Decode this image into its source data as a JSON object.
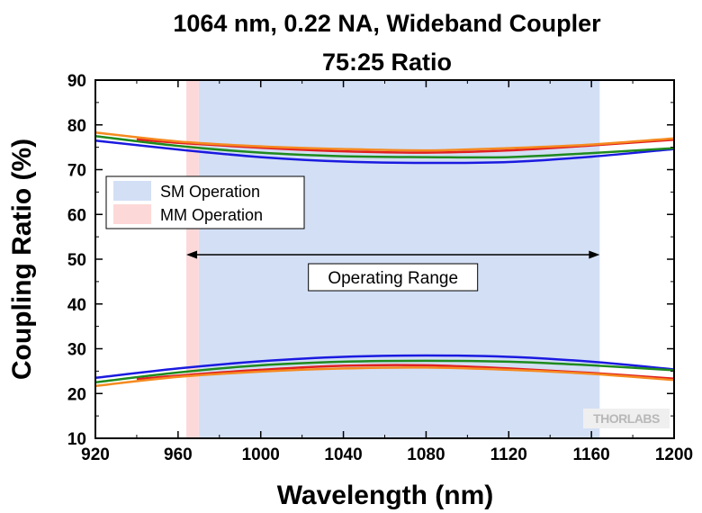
{
  "chart_data": {
    "type": "line",
    "title": [
      "1064 nm, 0.22 NA, Wideband Coupler",
      "75:25 Ratio"
    ],
    "xlabel": "Wavelength (nm)",
    "ylabel": "Coupling Ratio (%)",
    "xlim": [
      920,
      1200
    ],
    "ylim": [
      10,
      90
    ],
    "xticks": [
      920,
      960,
      1000,
      1040,
      1080,
      1120,
      1160,
      1200
    ],
    "yticks": [
      10,
      20,
      30,
      40,
      50,
      60,
      70,
      80,
      90
    ],
    "grid": false,
    "bands": [
      {
        "label": "SM Operation",
        "x0": 970,
        "x1": 1164,
        "color": "#d3dff5"
      },
      {
        "label": "MM Operation",
        "x0": 964,
        "x1": 970,
        "color": "#fdd8d8"
      }
    ],
    "legend": {
      "placement": "upper-left"
    },
    "annotation": {
      "label": "Operating Range",
      "x0": 964,
      "x1": 1164,
      "y": 51
    },
    "series": [
      {
        "color": "#1a1ae0",
        "points": [
          [
            920,
            76.5
          ],
          [
            960,
            74.5
          ],
          [
            1000,
            72.8
          ],
          [
            1040,
            71.8
          ],
          [
            1080,
            71.5
          ],
          [
            1120,
            71.7
          ],
          [
            1160,
            72.9
          ],
          [
            1200,
            74.6
          ]
        ]
      },
      {
        "color": "#1e8a1e",
        "points": [
          [
            920,
            77.5
          ],
          [
            960,
            75.3
          ],
          [
            1000,
            73.8
          ],
          [
            1040,
            73.0
          ],
          [
            1080,
            72.8
          ],
          [
            1120,
            72.8
          ],
          [
            1160,
            73.7
          ],
          [
            1200,
            74.8
          ]
        ]
      },
      {
        "color": "#e02020",
        "points": [
          [
            940,
            76.8
          ],
          [
            960,
            76.0
          ],
          [
            1000,
            74.9
          ],
          [
            1040,
            74.1
          ],
          [
            1080,
            73.8
          ],
          [
            1120,
            74.3
          ],
          [
            1160,
            75.4
          ],
          [
            1200,
            76.7
          ]
        ]
      },
      {
        "color": "#f58a1f",
        "points": [
          [
            920,
            78.3
          ],
          [
            960,
            76.3
          ],
          [
            1000,
            75.2
          ],
          [
            1040,
            74.6
          ],
          [
            1080,
            74.3
          ],
          [
            1120,
            74.8
          ],
          [
            1160,
            75.6
          ],
          [
            1200,
            77.0
          ]
        ]
      },
      {
        "color": "#1a1ae0",
        "points": [
          [
            920,
            23.5
          ],
          [
            960,
            25.6
          ],
          [
            1000,
            27.2
          ],
          [
            1040,
            28.2
          ],
          [
            1080,
            28.5
          ],
          [
            1120,
            28.2
          ],
          [
            1160,
            27.1
          ],
          [
            1200,
            25.4
          ]
        ]
      },
      {
        "color": "#1e8a1e",
        "points": [
          [
            920,
            22.5
          ],
          [
            960,
            24.7
          ],
          [
            1000,
            26.3
          ],
          [
            1040,
            27.1
          ],
          [
            1080,
            27.3
          ],
          [
            1120,
            27.1
          ],
          [
            1160,
            26.3
          ],
          [
            1200,
            25.2
          ]
        ]
      },
      {
        "color": "#e02020",
        "points": [
          [
            940,
            23.2
          ],
          [
            960,
            24.0
          ],
          [
            1000,
            25.3
          ],
          [
            1040,
            26.2
          ],
          [
            1080,
            26.3
          ],
          [
            1120,
            25.6
          ],
          [
            1160,
            24.6
          ],
          [
            1200,
            23.3
          ]
        ]
      },
      {
        "color": "#f58a1f",
        "points": [
          [
            920,
            21.7
          ],
          [
            960,
            23.7
          ],
          [
            1000,
            24.9
          ],
          [
            1040,
            25.6
          ],
          [
            1080,
            25.8
          ],
          [
            1120,
            25.3
          ],
          [
            1160,
            24.4
          ],
          [
            1200,
            23.0
          ]
        ]
      }
    ]
  },
  "logo": {
    "text": "THORLABS"
  }
}
